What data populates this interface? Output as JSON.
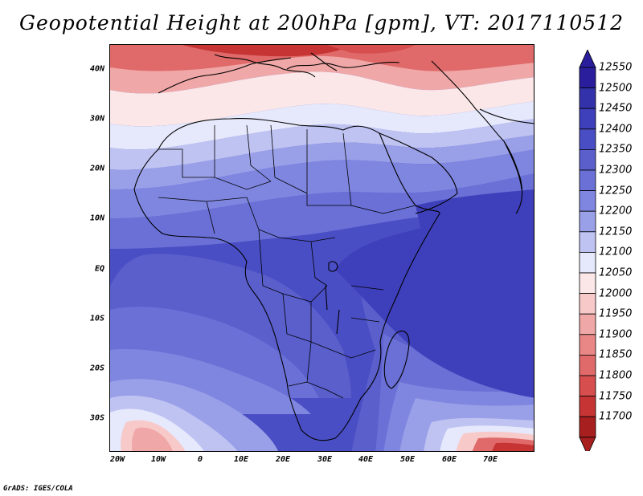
{
  "title": "Geopotential Height at 200hPa [gpm], VT: 2017110512",
  "footer": "GrADS: IGES/COLA",
  "lat_labels": [
    "40N",
    "30N",
    "20N",
    "10N",
    "EQ",
    "10S",
    "20S",
    "30S"
  ],
  "lon_labels": [
    "20W",
    "10W",
    "0",
    "10E",
    "20E",
    "30E",
    "40E",
    "50E",
    "60E",
    "70E"
  ],
  "colorbar": {
    "levels": [
      "12550",
      "12500",
      "12450",
      "12400",
      "12350",
      "12300",
      "12250",
      "12200",
      "12150",
      "12100",
      "12050",
      "12000",
      "11950",
      "11900",
      "11850",
      "11800",
      "11750",
      "11700"
    ],
    "colors": [
      "#2a1e9c",
      "#3432aa",
      "#3e3fba",
      "#4a4ec4",
      "#5a5fcc",
      "#6a70d6",
      "#7f86e0",
      "#9aa0e8",
      "#bfc3f2",
      "#e6e8fb",
      "#fbe7e7",
      "#f7c9c9",
      "#f0a7a7",
      "#e98787",
      "#e06a6a",
      "#d64e4e",
      "#c63434",
      "#a81f1f"
    ]
  },
  "map": {
    "domain": {
      "lon_min": -23,
      "lon_max": 80,
      "lat_min": -37,
      "lat_max": 45
    },
    "field": "Geopotential Height at 200hPa",
    "units": "gpm",
    "valid_time": "2017110512"
  }
}
